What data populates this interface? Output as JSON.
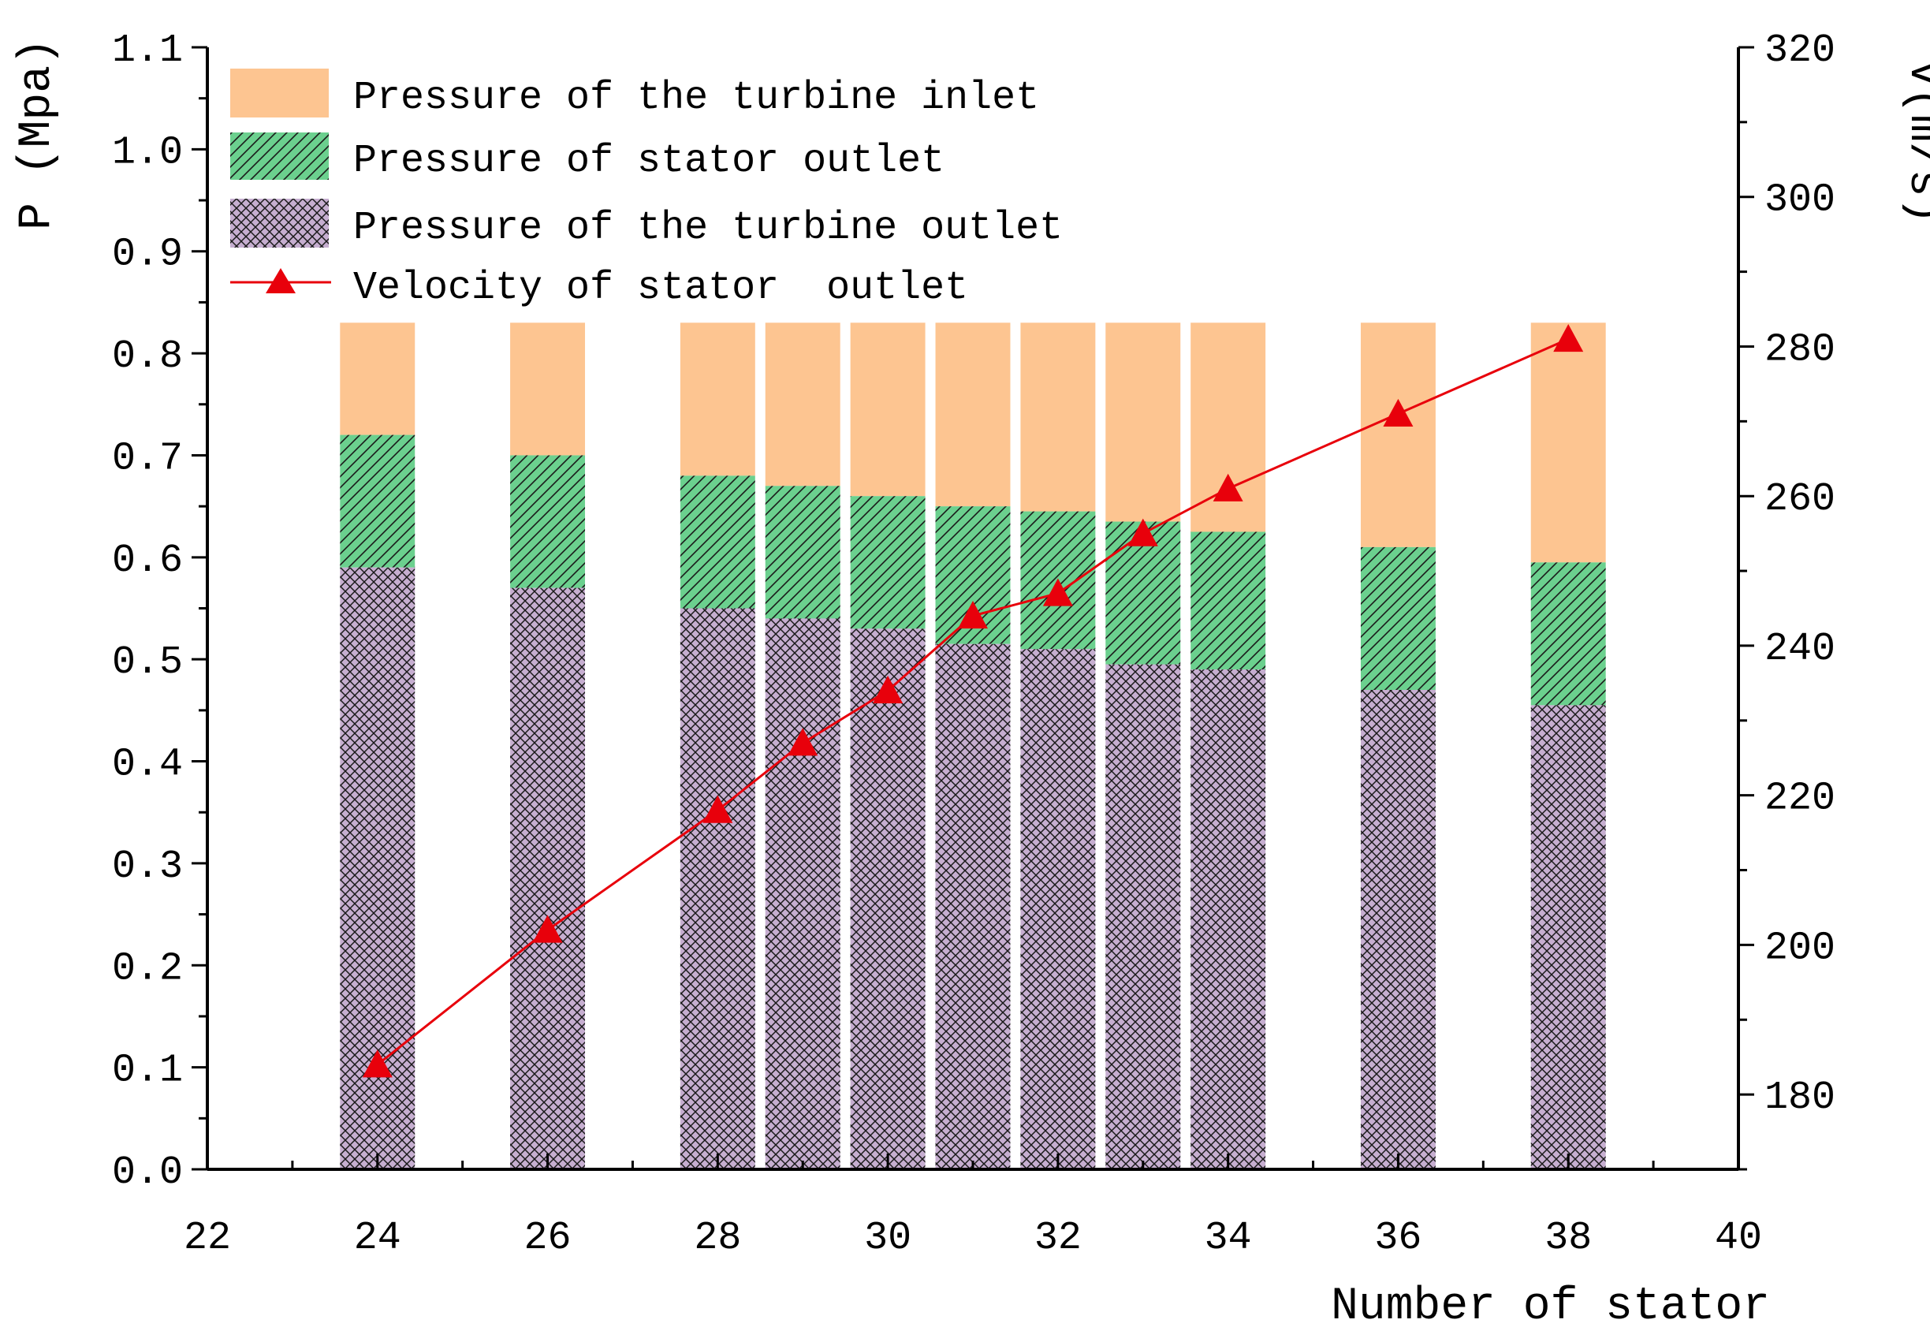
{
  "chart_data": {
    "type": "bar",
    "subtype": "stacked-bar-with-line",
    "x": [
      24,
      26,
      28,
      29,
      30,
      31,
      32,
      33,
      34,
      36,
      38
    ],
    "series": [
      {
        "name": "Pressure of the turbine inlet",
        "axis": "left",
        "kind": "bar",
        "color": "#FDC591",
        "pattern": "solid",
        "values": [
          0.83,
          0.83,
          0.83,
          0.83,
          0.83,
          0.83,
          0.83,
          0.83,
          0.83,
          0.83,
          0.83
        ]
      },
      {
        "name": "Pressure of stator outlet",
        "axis": "left",
        "kind": "bar",
        "color": "#6BD08E",
        "pattern": "diagonal-hatch",
        "values": [
          0.72,
          0.7,
          0.68,
          0.67,
          0.66,
          0.65,
          0.645,
          0.635,
          0.625,
          0.61,
          0.595
        ]
      },
      {
        "name": "Pressure of the turbine outlet",
        "axis": "left",
        "kind": "bar",
        "color": "#C6AED0",
        "pattern": "cross-hatch",
        "values": [
          0.59,
          0.57,
          0.55,
          0.54,
          0.53,
          0.515,
          0.51,
          0.495,
          0.49,
          0.47,
          0.455
        ]
      },
      {
        "name": "Velocity of stator  outlet",
        "axis": "right",
        "kind": "line",
        "color": "#E8000B",
        "marker": "triangle",
        "values": [
          184,
          202,
          218,
          227,
          234,
          244,
          247,
          255,
          261,
          271,
          281
        ]
      }
    ],
    "bar_width": 0.88,
    "xlim": [
      22,
      40
    ],
    "ylim_left": [
      0,
      1.1
    ],
    "ylim_right": [
      170,
      320
    ],
    "xticks": [
      "22",
      "24",
      "26",
      "28",
      "30",
      "32",
      "34",
      "36",
      "38",
      "40"
    ],
    "yticks_left": [
      "0.0",
      "0.1",
      "0.2",
      "0.3",
      "0.4",
      "0.5",
      "0.6",
      "0.7",
      "0.8",
      "0.9",
      "1.0",
      "1.1"
    ],
    "yticks_right": [
      "180",
      "200",
      "220",
      "240",
      "260",
      "280",
      "300",
      "320"
    ],
    "xlabel": "Number of stator",
    "ylabel_left": "P (Mpa)",
    "ylabel_right": "V(m/s)",
    "legend_position": "top-left",
    "grid": false
  }
}
